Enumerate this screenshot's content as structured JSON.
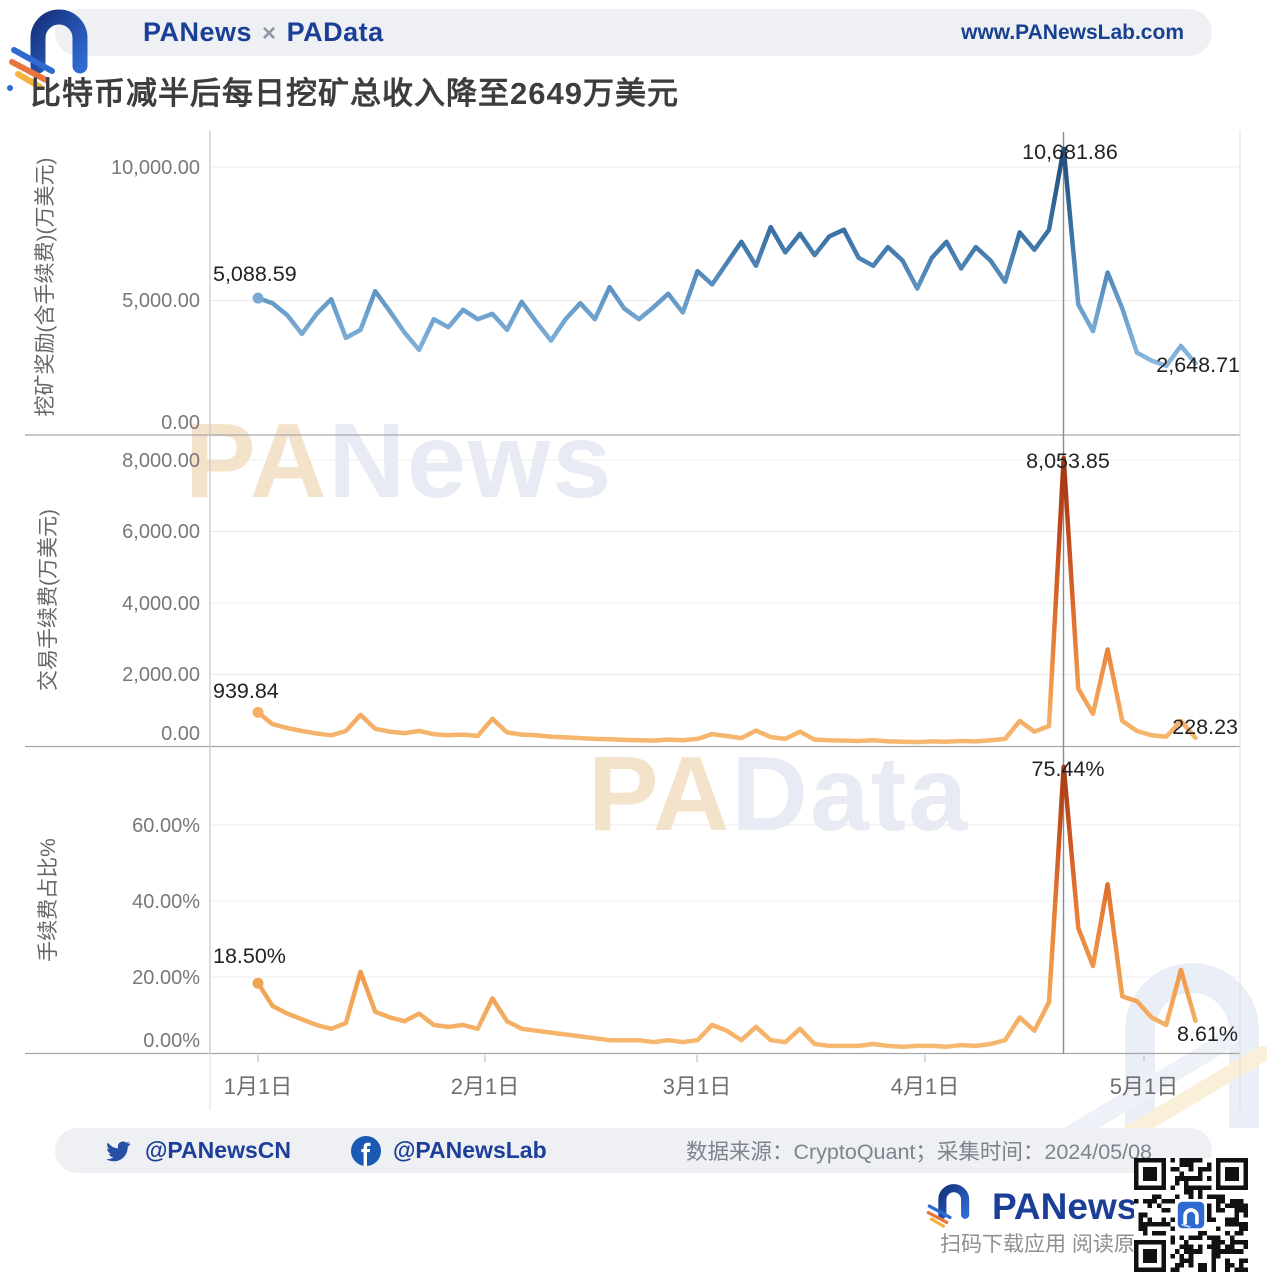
{
  "header": {
    "brand_left": "PANews",
    "brand_sep": "×",
    "brand_right": "PAData",
    "url": "www.PANewsLab.com"
  },
  "title": "比特币减半后每日挖矿总收入降至2649万美元",
  "watermarks": {
    "mid1_pa": "PA",
    "mid1_rest": "News",
    "mid2_pa": "PA",
    "mid2_rest": "Data"
  },
  "footer": {
    "twitter_handle": "@PANewsCN",
    "facebook_handle": "@PANewsLab",
    "source": "数据来源：CryptoQuant；采集时间：2024/05/08",
    "brand": "PANews",
    "scan_hint": "扫码下载应用 阅读原文"
  },
  "chart_data": [
    {
      "type": "line",
      "ylabel": "挖矿奖励(含手续费)(万美元)",
      "yticks": [
        "10,000.00",
        "5,000.00",
        "0.00"
      ],
      "ylim": [
        0,
        10800
      ],
      "x_ticks": [
        "1月1日",
        "2月1日",
        "3月1日",
        "4月1日",
        "5月1日"
      ],
      "x_start_date": "1月1日",
      "x_step_days": 2,
      "halving_index": 55,
      "first_label": "5,088.59",
      "peak_label": "10,681.86",
      "last_label": "2,648.71",
      "color_low": "#b4d1ea",
      "color_high": "#1c4b77",
      "values": [
        5088.59,
        4900,
        4450,
        3750,
        4500,
        5050,
        3600,
        3900,
        5350,
        4600,
        3800,
        3150,
        4300,
        4000,
        4650,
        4300,
        4500,
        3900,
        4950,
        4200,
        3500,
        4300,
        4900,
        4300,
        5500,
        4700,
        4300,
        4750,
        5250,
        4550,
        6100,
        5600,
        6400,
        7200,
        6300,
        7750,
        6800,
        7500,
        6700,
        7400,
        7650,
        6600,
        6300,
        7000,
        6500,
        5450,
        6600,
        7200,
        6200,
        7000,
        6500,
        5700,
        7550,
        6900,
        7650,
        10681.86,
        4850,
        3850,
        6050,
        4700,
        3050,
        2750,
        2550,
        3300,
        2648.71
      ]
    },
    {
      "type": "line",
      "ylabel": "交易手续费(万美元)",
      "yticks": [
        "8,000.00",
        "6,000.00",
        "4,000.00",
        "2,000.00",
        "0.00"
      ],
      "ylim": [
        0,
        8300
      ],
      "x_start_date": "1月1日",
      "x_step_days": 2,
      "halving_index": 55,
      "first_label": "939.84",
      "peak_label": "8,053.85",
      "last_label": "228.23",
      "color_low": "#f7bd76",
      "color_high": "#9e3512",
      "values": [
        939.84,
        610,
        500,
        420,
        350,
        300,
        420,
        870,
        480,
        400,
        360,
        420,
        330,
        300,
        320,
        280,
        760,
        380,
        320,
        300,
        260,
        240,
        220,
        200,
        190,
        170,
        160,
        150,
        180,
        160,
        200,
        330,
        280,
        220,
        430,
        250,
        200,
        400,
        180,
        160,
        150,
        140,
        160,
        130,
        120,
        110,
        130,
        120,
        140,
        130,
        160,
        200,
        700,
        400,
        560,
        8053.85,
        1600,
        900,
        2700,
        700,
        420,
        300,
        260,
        700,
        228.23
      ]
    },
    {
      "type": "line",
      "ylabel": "手续费占比%",
      "yticks": [
        "60.00%",
        "40.00%",
        "20.00%",
        "0.00%"
      ],
      "ylim": [
        0,
        78
      ],
      "x_start_date": "1月1日",
      "x_step_days": 2,
      "halving_index": 55,
      "first_label": "18.50%",
      "peak_label": "75.44%",
      "last_label": "8.61%",
      "color_low": "#f7bd76",
      "color_high": "#a03713",
      "values": [
        18.5,
        12.5,
        10.5,
        9,
        7.5,
        6.5,
        8,
        21.5,
        11,
        9.5,
        8.5,
        10.5,
        7.5,
        7,
        7.5,
        6.5,
        14.5,
        8.5,
        6.5,
        6,
        5.5,
        5,
        4.5,
        4,
        3.5,
        3.5,
        3.5,
        3,
        3.5,
        3,
        3.5,
        7.5,
        6,
        3.5,
        7,
        3.5,
        3,
        6.5,
        2.5,
        2,
        2,
        2,
        2.5,
        2,
        1.8,
        2,
        2,
        1.8,
        2.2,
        2,
        2.5,
        3.5,
        9.5,
        6,
        13.5,
        75.44,
        33,
        23,
        44.5,
        15,
        13.8,
        9.5,
        7.5,
        22,
        8.61
      ]
    }
  ]
}
